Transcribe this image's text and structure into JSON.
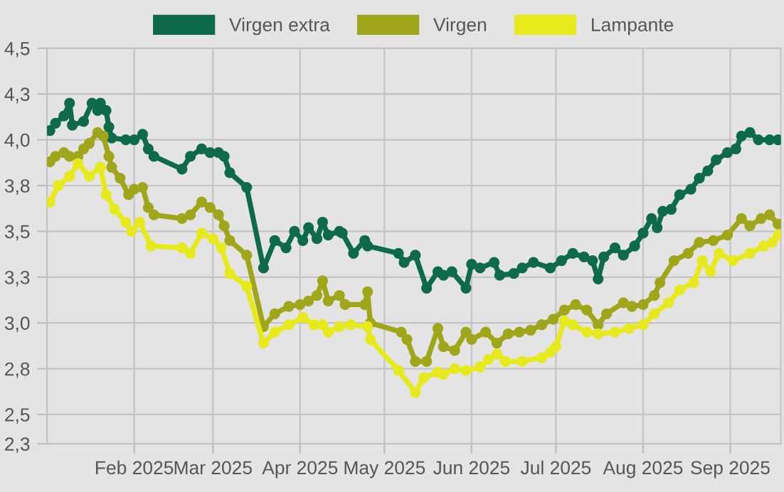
{
  "chart_data": {
    "type": "line",
    "xlim": [
      "2025-01-01",
      "2025-09-19"
    ],
    "xticks": [
      {
        "value": "2025-02-01",
        "label": "Feb 2025"
      },
      {
        "value": "2025-03-01",
        "label": "Mar 2025"
      },
      {
        "value": "2025-04-01",
        "label": "Apr 2025"
      },
      {
        "value": "2025-05-01",
        "label": "May 2025"
      },
      {
        "value": "2025-06-01",
        "label": "Jun 2025"
      },
      {
        "value": "2025-07-01",
        "label": "Jul 2025"
      },
      {
        "value": "2025-08-01",
        "label": "Aug 2025"
      },
      {
        "value": "2025-09-01",
        "label": "Sep 2025"
      }
    ],
    "ylim": [
      2.34,
      4.5
    ],
    "yticks": [
      {
        "value": 2.34,
        "label": "2,3"
      },
      {
        "value": 2.5,
        "label": "2,5"
      },
      {
        "value": 2.75,
        "label": "2,8"
      },
      {
        "value": 3.0,
        "label": "3,0"
      },
      {
        "value": 3.25,
        "label": "3,3"
      },
      {
        "value": 3.5,
        "label": "3,5"
      },
      {
        "value": 3.75,
        "label": "3,8"
      },
      {
        "value": 4.0,
        "label": "4,0"
      },
      {
        "value": 4.25,
        "label": "4,3"
      },
      {
        "value": 4.5,
        "label": "4,5"
      }
    ],
    "grid": true,
    "legend": "top",
    "marker": "circle",
    "line_style": "solid",
    "series": [
      {
        "name": "Virgen extra",
        "color": "#0e6b4a",
        "x": [
          "2025-01-02",
          "2025-01-04",
          "2025-01-07",
          "2025-01-09",
          "2025-01-10",
          "2025-01-14",
          "2025-01-17",
          "2025-01-19",
          "2025-01-20",
          "2025-01-22",
          "2025-01-23",
          "2025-01-24",
          "2025-01-29",
          "2025-02-01",
          "2025-02-04",
          "2025-02-06",
          "2025-02-08",
          "2025-02-18",
          "2025-02-21",
          "2025-02-25",
          "2025-02-28",
          "2025-03-03",
          "2025-03-05",
          "2025-03-07",
          "2025-03-13",
          "2025-03-19",
          "2025-03-23",
          "2025-03-27",
          "2025-03-30",
          "2025-04-02",
          "2025-04-04",
          "2025-04-07",
          "2025-04-09",
          "2025-04-11",
          "2025-04-15",
          "2025-04-16",
          "2025-04-20",
          "2025-04-24",
          "2025-04-25",
          "2025-05-06",
          "2025-05-08",
          "2025-05-12",
          "2025-05-16",
          "2025-05-20",
          "2025-05-22",
          "2025-05-25",
          "2025-05-30",
          "2025-06-01",
          "2025-06-04",
          "2025-06-09",
          "2025-06-11",
          "2025-06-16",
          "2025-06-19",
          "2025-06-23",
          "2025-06-29",
          "2025-07-03",
          "2025-07-07",
          "2025-07-11",
          "2025-07-14",
          "2025-07-16",
          "2025-07-18",
          "2025-07-22",
          "2025-07-25",
          "2025-07-29",
          "2025-08-01",
          "2025-08-04",
          "2025-08-06",
          "2025-08-08",
          "2025-08-11",
          "2025-08-14",
          "2025-08-18",
          "2025-08-21",
          "2025-08-24",
          "2025-08-27",
          "2025-08-31",
          "2025-09-03",
          "2025-09-05",
          "2025-09-08",
          "2025-09-11",
          "2025-09-15",
          "2025-09-18"
        ],
        "values": [
          4.05,
          4.09,
          4.13,
          4.2,
          4.08,
          4.1,
          4.2,
          4.16,
          4.2,
          4.16,
          4.07,
          4.01,
          4.0,
          4.0,
          4.03,
          3.95,
          3.91,
          3.84,
          3.91,
          3.95,
          3.93,
          3.93,
          3.91,
          3.82,
          3.74,
          3.3,
          3.45,
          3.41,
          3.5,
          3.45,
          3.52,
          3.46,
          3.55,
          3.48,
          3.5,
          3.49,
          3.38,
          3.45,
          3.42,
          3.38,
          3.33,
          3.37,
          3.19,
          3.28,
          3.26,
          3.28,
          3.19,
          3.32,
          3.3,
          3.33,
          3.26,
          3.27,
          3.3,
          3.33,
          3.3,
          3.34,
          3.38,
          3.36,
          3.34,
          3.24,
          3.36,
          3.41,
          3.37,
          3.42,
          3.49,
          3.57,
          3.52,
          3.61,
          3.62,
          3.7,
          3.73,
          3.79,
          3.83,
          3.89,
          3.93,
          3.95,
          4.02,
          4.04,
          4.0,
          4.0,
          4.0
        ]
      },
      {
        "name": "Virgen",
        "color": "#a0a61a",
        "x": [
          "2025-01-02",
          "2025-01-04",
          "2025-01-07",
          "2025-01-09",
          "2025-01-12",
          "2025-01-14",
          "2025-01-16",
          "2025-01-19",
          "2025-01-21",
          "2025-01-23",
          "2025-01-24",
          "2025-01-27",
          "2025-01-30",
          "2025-02-01",
          "2025-02-04",
          "2025-02-06",
          "2025-02-08",
          "2025-02-18",
          "2025-02-21",
          "2025-02-25",
          "2025-02-28",
          "2025-03-03",
          "2025-03-05",
          "2025-03-07",
          "2025-03-13",
          "2025-03-19",
          "2025-03-23",
          "2025-03-28",
          "2025-04-01",
          "2025-04-04",
          "2025-04-07",
          "2025-04-09",
          "2025-04-11",
          "2025-04-15",
          "2025-04-17",
          "2025-04-24",
          "2025-04-25",
          "2025-04-26",
          "2025-05-07",
          "2025-05-09",
          "2025-05-12",
          "2025-05-16",
          "2025-05-20",
          "2025-05-22",
          "2025-05-26",
          "2025-05-30",
          "2025-06-01",
          "2025-06-06",
          "2025-06-10",
          "2025-06-14",
          "2025-06-18",
          "2025-06-22",
          "2025-06-26",
          "2025-06-30",
          "2025-07-04",
          "2025-07-08",
          "2025-07-12",
          "2025-07-16",
          "2025-07-19",
          "2025-07-25",
          "2025-07-28",
          "2025-08-01",
          "2025-08-05",
          "2025-08-07",
          "2025-08-12",
          "2025-08-17",
          "2025-08-21",
          "2025-08-26",
          "2025-08-31",
          "2025-09-05",
          "2025-09-08",
          "2025-09-12",
          "2025-09-15",
          "2025-09-18"
        ],
        "values": [
          3.88,
          3.91,
          3.93,
          3.91,
          3.91,
          3.95,
          3.98,
          4.04,
          4.02,
          3.91,
          3.85,
          3.79,
          3.7,
          3.73,
          3.74,
          3.63,
          3.59,
          3.57,
          3.59,
          3.66,
          3.63,
          3.59,
          3.53,
          3.45,
          3.37,
          2.98,
          3.05,
          3.09,
          3.1,
          3.12,
          3.15,
          3.23,
          3.12,
          3.15,
          3.1,
          3.1,
          3.17,
          3.0,
          2.95,
          2.91,
          2.79,
          2.79,
          2.97,
          2.87,
          2.85,
          2.95,
          2.91,
          2.95,
          2.89,
          2.94,
          2.95,
          2.96,
          2.99,
          3.02,
          3.07,
          3.1,
          3.07,
          2.99,
          3.05,
          3.11,
          3.09,
          3.1,
          3.15,
          3.22,
          3.34,
          3.38,
          3.44,
          3.45,
          3.48,
          3.57,
          3.53,
          3.57,
          3.59,
          3.54
        ]
      },
      {
        "name": "Lampante",
        "color": "#e6ea1c",
        "x": [
          "2025-01-02",
          "2025-01-05",
          "2025-01-09",
          "2025-01-12",
          "2025-01-16",
          "2025-01-20",
          "2025-01-22",
          "2025-01-25",
          "2025-01-29",
          "2025-01-31",
          "2025-02-03",
          "2025-02-07",
          "2025-02-18",
          "2025-02-21",
          "2025-02-25",
          "2025-03-01",
          "2025-03-04",
          "2025-03-07",
          "2025-03-13",
          "2025-03-19",
          "2025-03-23",
          "2025-03-28",
          "2025-04-02",
          "2025-04-06",
          "2025-04-09",
          "2025-04-11",
          "2025-04-15",
          "2025-04-19",
          "2025-04-25",
          "2025-04-26",
          "2025-05-06",
          "2025-05-12",
          "2025-05-15",
          "2025-05-20",
          "2025-05-22",
          "2025-05-26",
          "2025-05-30",
          "2025-06-04",
          "2025-06-07",
          "2025-06-10",
          "2025-06-13",
          "2025-06-19",
          "2025-06-26",
          "2025-06-29",
          "2025-07-01",
          "2025-07-04",
          "2025-07-07",
          "2025-07-12",
          "2025-07-16",
          "2025-07-22",
          "2025-07-27",
          "2025-08-01",
          "2025-08-05",
          "2025-08-10",
          "2025-08-14",
          "2025-08-19",
          "2025-08-22",
          "2025-08-25",
          "2025-08-28",
          "2025-09-02",
          "2025-09-08",
          "2025-09-13",
          "2025-09-16",
          "2025-09-18"
        ],
        "values": [
          3.66,
          3.75,
          3.8,
          3.87,
          3.8,
          3.85,
          3.7,
          3.62,
          3.55,
          3.5,
          3.55,
          3.42,
          3.41,
          3.38,
          3.49,
          3.46,
          3.41,
          3.27,
          3.2,
          2.89,
          2.95,
          2.99,
          3.03,
          2.99,
          2.99,
          2.95,
          2.98,
          2.99,
          2.98,
          2.91,
          2.74,
          2.62,
          2.7,
          2.73,
          2.72,
          2.75,
          2.74,
          2.76,
          2.8,
          2.83,
          2.79,
          2.79,
          2.81,
          2.84,
          2.87,
          3.01,
          2.99,
          2.95,
          2.94,
          2.95,
          2.97,
          2.99,
          3.05,
          3.11,
          3.18,
          3.22,
          3.34,
          3.28,
          3.38,
          3.34,
          3.38,
          3.42,
          3.44,
          3.48
        ]
      }
    ]
  }
}
